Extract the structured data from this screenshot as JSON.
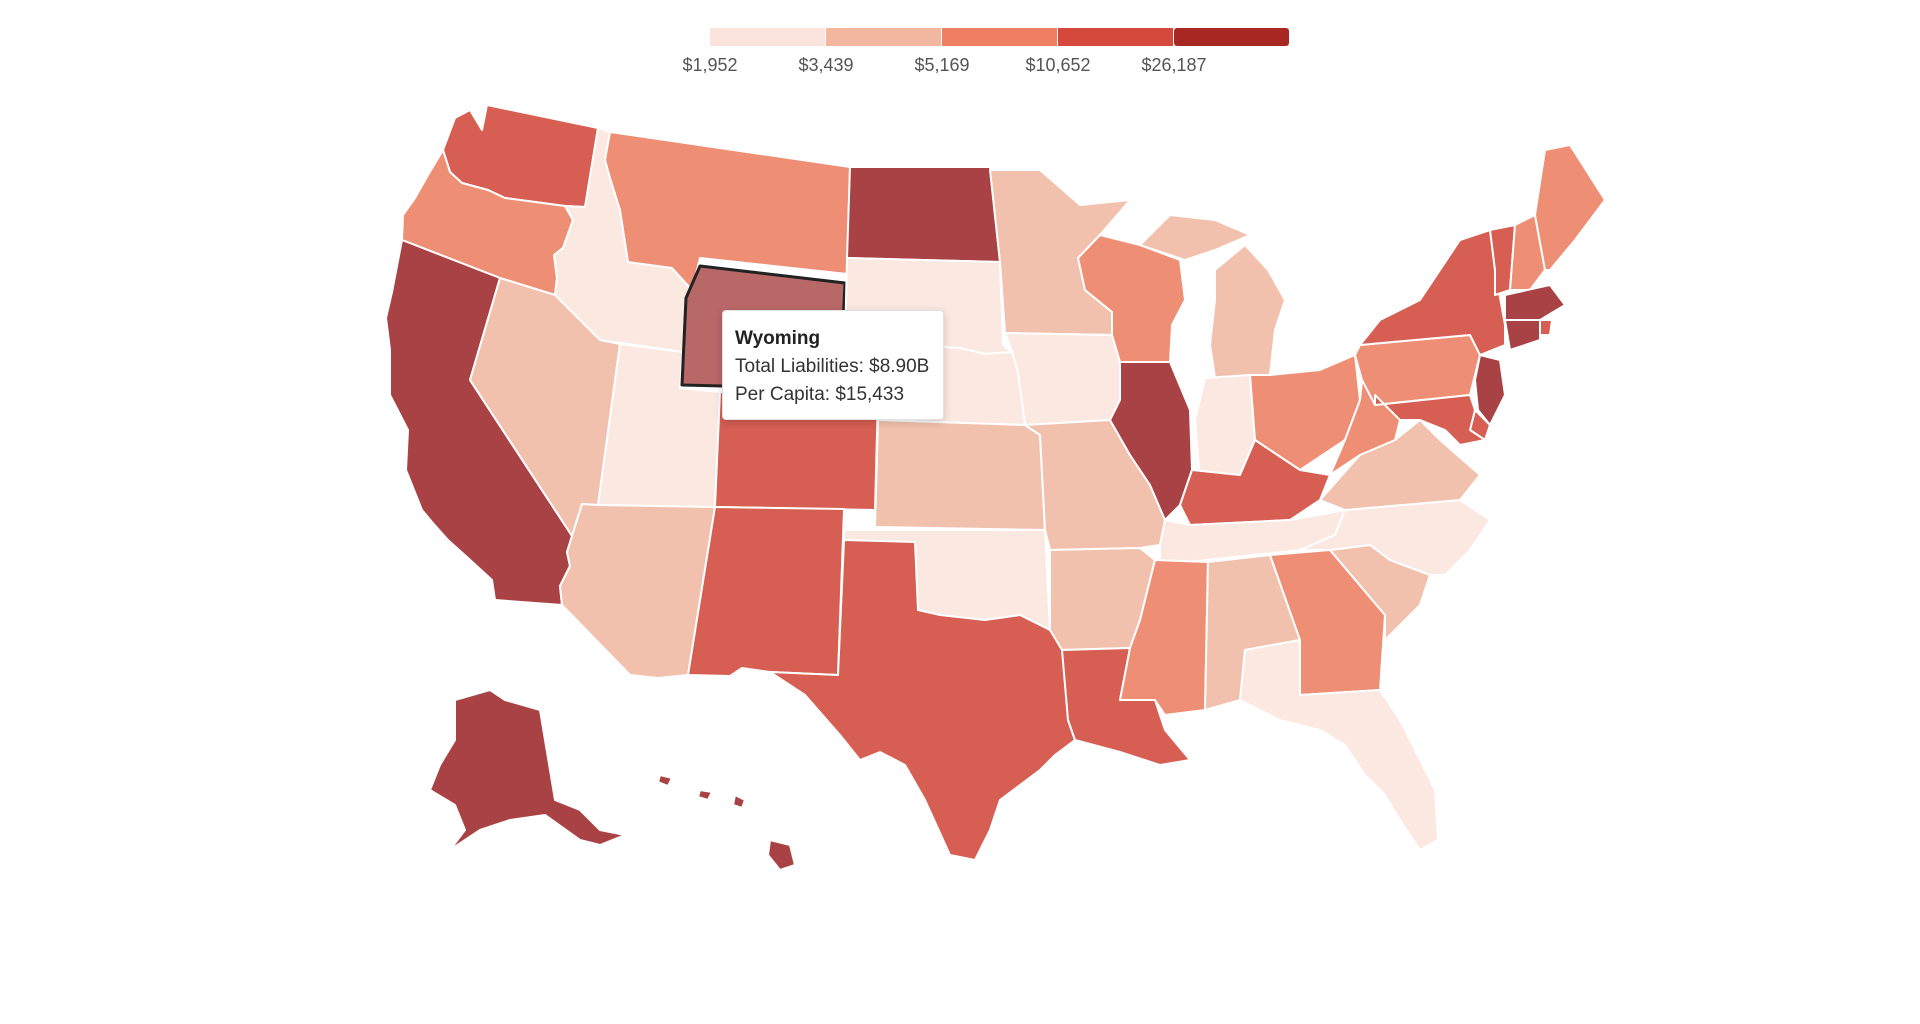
{
  "legend": {
    "bins": [
      {
        "label": "$1,952",
        "color": "#fbe4dc"
      },
      {
        "label": "$3,439",
        "color": "#f3b69f"
      },
      {
        "label": "$5,169",
        "color": "#ee7f63"
      },
      {
        "label": "$10,652",
        "color": "#d5493c"
      },
      {
        "label": "$26,187",
        "color": "#a82722"
      }
    ]
  },
  "tooltip": {
    "title": "Wyoming",
    "total": "Total Liabilities: $8.90B",
    "per_capita": "Per Capita: $15,433"
  },
  "colors": {
    "c1": "#fbe8e1",
    "c2": "#f2c1ad",
    "c3": "#ee8f75",
    "c4": "#d65e52",
    "c5": "#a84244",
    "highlight": "#b96868",
    "border": "#ffffff",
    "active_border": "#222222"
  },
  "states": [
    {
      "name": "Washington",
      "fill": "c4"
    },
    {
      "name": "Oregon",
      "fill": "c3"
    },
    {
      "name": "California",
      "fill": "c5"
    },
    {
      "name": "Idaho",
      "fill": "c1"
    },
    {
      "name": "Nevada",
      "fill": "c2"
    },
    {
      "name": "Utah",
      "fill": "c1"
    },
    {
      "name": "Arizona",
      "fill": "c2"
    },
    {
      "name": "Montana",
      "fill": "c3"
    },
    {
      "name": "Wyoming",
      "fill": "highlight"
    },
    {
      "name": "Colorado",
      "fill": "c4"
    },
    {
      "name": "New Mexico",
      "fill": "c4"
    },
    {
      "name": "North Dakota",
      "fill": "c5"
    },
    {
      "name": "South Dakota",
      "fill": "c1"
    },
    {
      "name": "Nebraska",
      "fill": "c1"
    },
    {
      "name": "Kansas",
      "fill": "c2"
    },
    {
      "name": "Oklahoma",
      "fill": "c1"
    },
    {
      "name": "Texas",
      "fill": "c4"
    },
    {
      "name": "Minnesota",
      "fill": "c2"
    },
    {
      "name": "Iowa",
      "fill": "c1"
    },
    {
      "name": "Missouri",
      "fill": "c2"
    },
    {
      "name": "Arkansas",
      "fill": "c2"
    },
    {
      "name": "Louisiana",
      "fill": "c4"
    },
    {
      "name": "Wisconsin",
      "fill": "c3"
    },
    {
      "name": "Illinois",
      "fill": "c5"
    },
    {
      "name": "Michigan",
      "fill": "c2"
    },
    {
      "name": "Indiana",
      "fill": "c1"
    },
    {
      "name": "Ohio",
      "fill": "c3"
    },
    {
      "name": "Kentucky",
      "fill": "c4"
    },
    {
      "name": "Tennessee",
      "fill": "c1"
    },
    {
      "name": "Mississippi",
      "fill": "c3"
    },
    {
      "name": "Alabama",
      "fill": "c2"
    },
    {
      "name": "Georgia",
      "fill": "c3"
    },
    {
      "name": "Florida",
      "fill": "c1"
    },
    {
      "name": "South Carolina",
      "fill": "c2"
    },
    {
      "name": "North Carolina",
      "fill": "c1"
    },
    {
      "name": "Virginia",
      "fill": "c2"
    },
    {
      "name": "West Virginia",
      "fill": "c3"
    },
    {
      "name": "Pennsylvania",
      "fill": "c3"
    },
    {
      "name": "New York",
      "fill": "c4"
    },
    {
      "name": "Vermont",
      "fill": "c4"
    },
    {
      "name": "New Hampshire",
      "fill": "c3"
    },
    {
      "name": "Maine",
      "fill": "c3"
    },
    {
      "name": "Massachusetts",
      "fill": "c5"
    },
    {
      "name": "Rhode Island",
      "fill": "c4"
    },
    {
      "name": "Connecticut",
      "fill": "c5"
    },
    {
      "name": "New Jersey",
      "fill": "c5"
    },
    {
      "name": "Delaware",
      "fill": "c4"
    },
    {
      "name": "Maryland",
      "fill": "c4"
    },
    {
      "name": "Alaska",
      "fill": "c5"
    },
    {
      "name": "Hawaii",
      "fill": "c5"
    }
  ]
}
